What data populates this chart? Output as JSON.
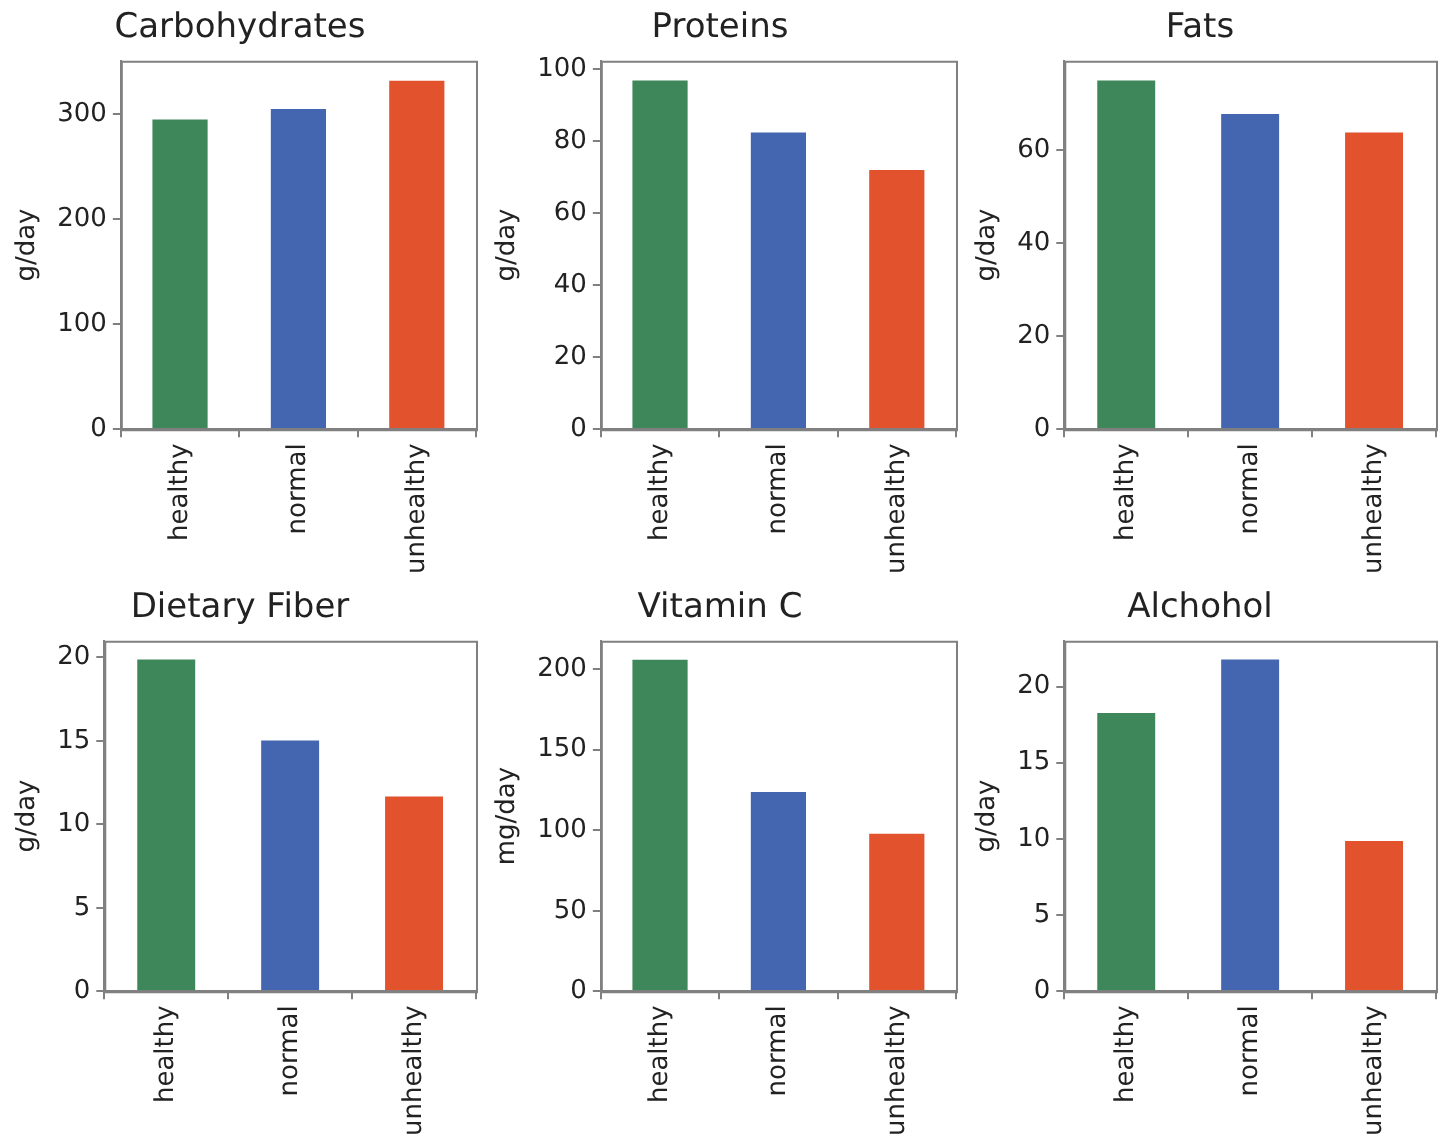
{
  "chart_data": [
    {
      "type": "bar",
      "title": "Carbohydrates",
      "ylabel": "g/day",
      "categories": [
        "healthy",
        "normal",
        "unhealthy"
      ],
      "values": [
        297,
        307,
        334
      ],
      "colors": [
        "#3e875a",
        "#4466b0",
        "#e2522d"
      ],
      "ylim": [
        0,
        351
      ],
      "yticks": [
        0,
        100,
        200,
        300
      ]
    },
    {
      "type": "bar",
      "title": "Proteins",
      "ylabel": "g/day",
      "categories": [
        "healthy",
        "normal",
        "unhealthy"
      ],
      "values": [
        97.5,
        83,
        72.6
      ],
      "colors": [
        "#3e875a",
        "#4466b0",
        "#e2522d"
      ],
      "ylim": [
        0,
        102.4
      ],
      "yticks": [
        0,
        20,
        40,
        60,
        80,
        100
      ]
    },
    {
      "type": "bar",
      "title": "Fats",
      "ylabel": "g/day",
      "categories": [
        "healthy",
        "normal",
        "unhealthy"
      ],
      "values": [
        75.4,
        68.2,
        64.2
      ],
      "colors": [
        "#3e875a",
        "#4466b0",
        "#e2522d"
      ],
      "ylim": [
        0,
        79.2
      ],
      "yticks": [
        0,
        20,
        40,
        60
      ]
    },
    {
      "type": "bar",
      "title": "Dietary Fiber",
      "ylabel": "g/day",
      "categories": [
        "healthy",
        "normal",
        "unhealthy"
      ],
      "values": [
        20,
        15.15,
        11.8
      ],
      "colors": [
        "#3e875a",
        "#4466b0",
        "#e2522d"
      ],
      "ylim": [
        0,
        21
      ],
      "yticks": [
        0,
        5,
        10,
        15,
        20
      ]
    },
    {
      "type": "bar",
      "title": "Vitamin C",
      "ylabel": "mg/day",
      "categories": [
        "healthy",
        "normal",
        "unhealthy"
      ],
      "values": [
        207,
        125,
        99
      ],
      "colors": [
        "#3e875a",
        "#4466b0",
        "#e2522d"
      ],
      "ylim": [
        0,
        217.5
      ],
      "yticks": [
        0,
        50,
        100,
        150,
        200
      ]
    },
    {
      "type": "bar",
      "title": "Alchohol",
      "ylabel": "g/day",
      "categories": [
        "healthy",
        "normal",
        "unhealthy"
      ],
      "values": [
        18.4,
        21.9,
        10
      ],
      "colors": [
        "#3e875a",
        "#4466b0",
        "#e2522d"
      ],
      "ylim": [
        0,
        23
      ],
      "yticks": [
        0,
        5,
        10,
        15,
        20
      ]
    }
  ]
}
